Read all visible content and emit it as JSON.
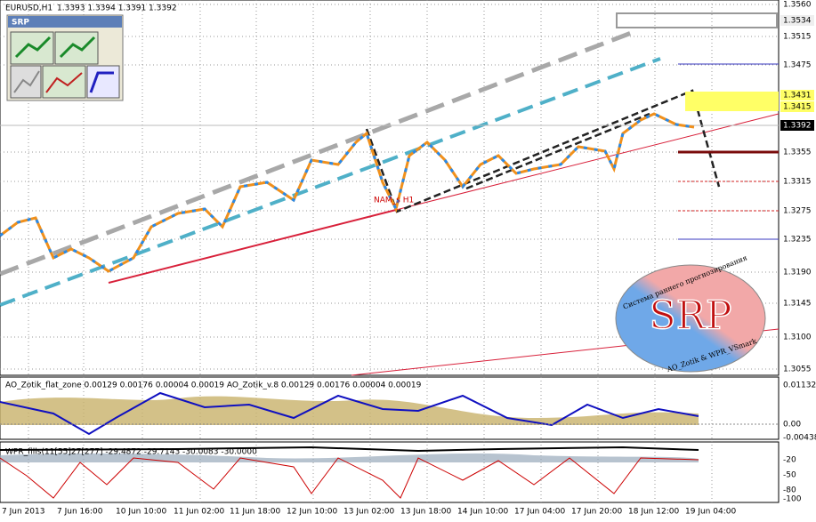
{
  "header": {
    "symbol": "EURUSD,H1",
    "ohlc": "1.3393 1.3394 1.3391 1.3392"
  },
  "panel": {
    "title": "SRP"
  },
  "price_axis": [
    "1.3560",
    "1.3534",
    "1.3515",
    "1.3475",
    "1.3431",
    "1.3415",
    "1.3392",
    "1.3355",
    "1.3315",
    "1.3275",
    "1.3235",
    "1.3190",
    "1.3145",
    "1.3100",
    "1.3055"
  ],
  "annotation": "NAM_s H1",
  "logo": {
    "title": "SRP",
    "arc_text": "Система раннего прогнозирования",
    "credit": "AO_Zotik & WPR_VSmark"
  },
  "indicator1": {
    "label": "AO_Zotik_flat_zone 0.00129 0.00176 0.00004 0.00019   AO_Zotik_v.8 0.00129 0.00176 0.00004 0.00019",
    "axis": [
      "0.01132",
      "0.00",
      "-0.00438"
    ]
  },
  "indicator2": {
    "label": "WPR_fills(11[55]27[277] -29.4872 -29.7143 -30.0083 -30.0000",
    "axis": [
      "-20",
      "-50",
      "-80",
      "-100"
    ]
  },
  "time_axis": [
    "7 Jun 2013",
    "7 Jun 16:00",
    "10 Jun 10:00",
    "11 Jun 02:00",
    "11 Jun 18:00",
    "12 Jun 10:00",
    "13 Jun 02:00",
    "13 Jun 18:00",
    "14 Jun 10:00",
    "17 Jun 04:00",
    "17 Jun 20:00",
    "18 Jun 12:00",
    "19 Jun 04:00"
  ]
}
